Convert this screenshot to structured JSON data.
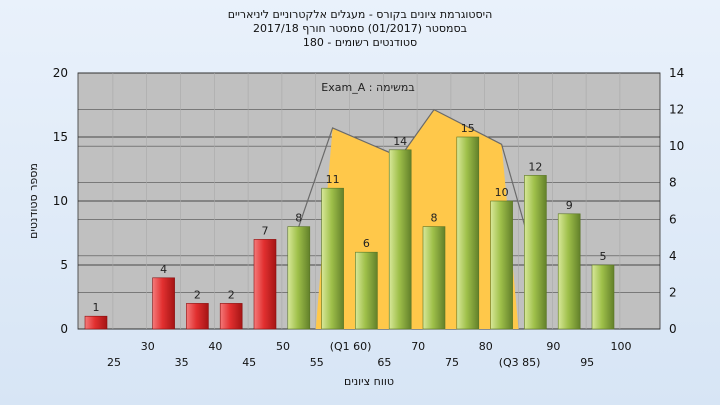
{
  "chart_data": {
    "type": "bar",
    "title_lines": [
      "היסטוגרמת ציונים בקורס - מעגלים אלקטרוניים ליניאריים",
      "בסמסטר (01/2017) סמסטר חורף 2017/18",
      "סטודנטים רשומים - 180"
    ],
    "annotation": "במשימה : Exam_A",
    "xlabel": "טווח ציונים",
    "ylabel": "מספר סטודנטים",
    "y_left_lim": [
      0,
      20
    ],
    "y_left_ticks": [
      "0",
      "5",
      "10",
      "15",
      "20"
    ],
    "y_right_lim": [
      0,
      14
    ],
    "y_right_ticks": [
      "0",
      "2",
      "4",
      "6",
      "8",
      "10",
      "12",
      "14"
    ],
    "x_tick_labels": [
      {
        "label": "25",
        "row": 1
      },
      {
        "label": "30",
        "row": 0
      },
      {
        "label": "35",
        "row": 1
      },
      {
        "label": "40",
        "row": 0
      },
      {
        "label": "45",
        "row": 1
      },
      {
        "label": "50",
        "row": 0
      },
      {
        "label": "55",
        "row": 1
      },
      {
        "label": "(Q1 60)",
        "row": 0
      },
      {
        "label": "65",
        "row": 1
      },
      {
        "label": "70",
        "row": 0
      },
      {
        "label": "75",
        "row": 1
      },
      {
        "label": "80",
        "row": 0
      },
      {
        "label": "(Q3 85)",
        "row": 1
      },
      {
        "label": "90",
        "row": 0
      },
      {
        "label": "95",
        "row": 1
      },
      {
        "label": "100",
        "row": 0
      }
    ],
    "bars": [
      {
        "slot": 0,
        "value": 1,
        "color": "red"
      },
      {
        "slot": 2,
        "value": 4,
        "color": "red"
      },
      {
        "slot": 3,
        "value": 2,
        "color": "red"
      },
      {
        "slot": 4,
        "value": 2,
        "color": "red"
      },
      {
        "slot": 5,
        "value": 7,
        "color": "red"
      },
      {
        "slot": 6,
        "value": 8,
        "color": "green"
      },
      {
        "slot": 7,
        "value": 11,
        "color": "green"
      },
      {
        "slot": 8,
        "value": 6,
        "color": "green"
      },
      {
        "slot": 9,
        "value": 14,
        "color": "green"
      },
      {
        "slot": 10,
        "value": 8,
        "color": "green"
      },
      {
        "slot": 11,
        "value": 15,
        "color": "green"
      },
      {
        "slot": 12,
        "value": 10,
        "color": "green"
      },
      {
        "slot": 13,
        "value": 12,
        "color": "green"
      },
      {
        "slot": 14,
        "value": 9,
        "color": "green"
      },
      {
        "slot": 15,
        "value": 5,
        "color": "green"
      }
    ],
    "area_right_axis": [
      {
        "slot": 6.5,
        "value": 0
      },
      {
        "slot": 7.0,
        "value": 11
      },
      {
        "slot": 9.0,
        "value": 9.4
      },
      {
        "slot": 10.0,
        "value": 12
      },
      {
        "slot": 12.0,
        "value": 10.1
      },
      {
        "slot": 12.5,
        "value": 0
      }
    ],
    "gray_line_right_axis": [
      {
        "slot": 6.0,
        "value": 5.6
      },
      {
        "slot": 7.0,
        "value": 11
      },
      {
        "slot": 9.0,
        "value": 9.4
      },
      {
        "slot": 10.0,
        "value": 12
      },
      {
        "slot": 12.0,
        "value": 10.1
      },
      {
        "slot": 13.0,
        "value": 3.6
      }
    ],
    "grid": true,
    "colors": {
      "plot_bg": "#c0c0c0",
      "red_light": "#f06060",
      "red_dark": "#b01818",
      "green_light": "#c6dc7c",
      "green_dark": "#6f8f2a",
      "area": "#ffc84a",
      "frame": "#555555"
    }
  }
}
